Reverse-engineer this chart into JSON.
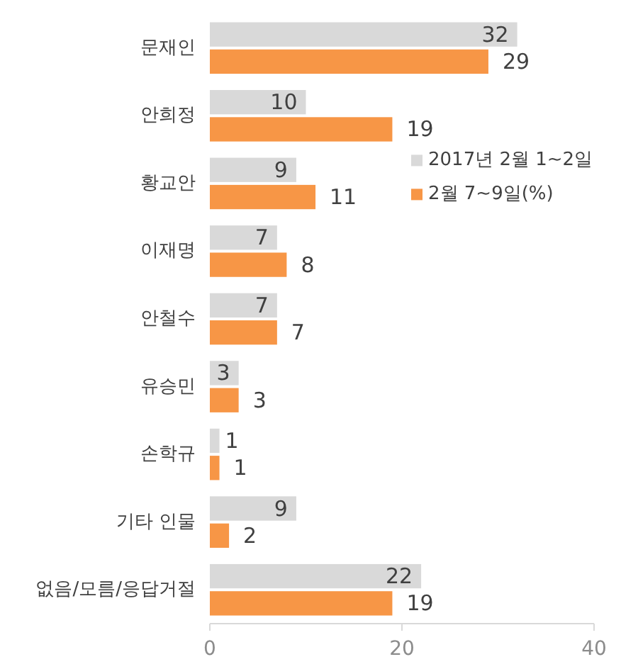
{
  "chart_data": {
    "type": "bar",
    "orientation": "horizontal",
    "categories": [
      "문재인",
      "안희정",
      "황교안",
      "이재명",
      "안철수",
      "유승민",
      "손학규",
      "기타 인물",
      "없음/모름/응답거절"
    ],
    "series": [
      {
        "name": "2017년 2월 1~2일",
        "color": "#d9d9d9",
        "values": [
          32,
          10,
          9,
          7,
          7,
          3,
          1,
          9,
          22
        ]
      },
      {
        "name": "2월 7~9일(%)",
        "color": "#f79646",
        "values": [
          29,
          19,
          11,
          8,
          7,
          3,
          1,
          2,
          19
        ]
      }
    ],
    "xlim": [
      0,
      40
    ],
    "xticks": [
      0,
      20,
      40
    ],
    "data_labels": true,
    "legend": "right"
  }
}
